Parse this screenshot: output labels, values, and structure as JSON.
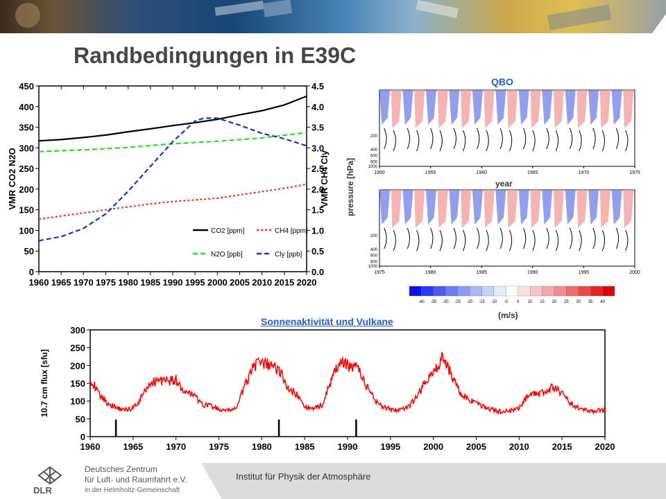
{
  "title": "Randbedingungen in E39C",
  "qbo_title": "QBO",
  "qbo_ylabel": "pressure [hPa]",
  "qbo_xlabel": "year",
  "qbo_colorbar_unit": "(m/s)",
  "solar_title": "Sonnenaktivität und Vulkane",
  "footer": {
    "institute": "Institut für Physik der Atmosphäre",
    "org_line1": "Deutsches Zentrum",
    "org_line2": "für Luft- und Raumfahrt e.V.",
    "org_line3": "in der Helmholtz-Gemeinschaft",
    "logo_text": "DLR"
  },
  "chart_data": [
    {
      "type": "line",
      "ylabel_left": "VMR CO2 N2O",
      "ylabel_right": "VMR CH4 Cly",
      "xlim": [
        1960,
        2020
      ],
      "ylim_left": [
        0,
        450
      ],
      "ylim_right": [
        0,
        4.5
      ],
      "x_ticks": [
        1960,
        1965,
        1970,
        1975,
        1980,
        1985,
        1990,
        1995,
        2000,
        2005,
        2010,
        2015,
        2020
      ],
      "y_ticks_left": [
        "0",
        "50",
        "100",
        "150",
        "200",
        "250",
        "300",
        "350",
        "400",
        "450"
      ],
      "y_ticks_right": [
        "0.0",
        "0.5",
        "1.0",
        "1.5",
        "2.0",
        "2.5",
        "3.0",
        "3.5",
        "4.0",
        "4.5"
      ],
      "grid": false,
      "legend_position": "bottom-right",
      "series": [
        {
          "name": "CO2 [ppm]",
          "axis": "left",
          "color": "#000000",
          "dash": "solid",
          "x": [
            1960,
            1965,
            1970,
            1975,
            1980,
            1985,
            1990,
            1995,
            2000,
            2005,
            2010,
            2015,
            2020
          ],
          "y": [
            317,
            320,
            325,
            331,
            339,
            346,
            354,
            361,
            369,
            380,
            390,
            404,
            425
          ]
        },
        {
          "name": "N2O [ppb]",
          "axis": "left",
          "color": "#22dd22",
          "dash": "dashed",
          "x": [
            1960,
            1970,
            1980,
            1990,
            2000,
            2010,
            2020
          ],
          "y": [
            291,
            295,
            301,
            310,
            316,
            324,
            337
          ]
        },
        {
          "name": "CH4 [ppm]",
          "axis": "right",
          "color": "#e83030",
          "dash": "dotted",
          "x": [
            1960,
            1965,
            1970,
            1975,
            1980,
            1985,
            1990,
            1995,
            2000,
            2005,
            2010,
            2015,
            2020
          ],
          "y": [
            1.27,
            1.35,
            1.42,
            1.5,
            1.57,
            1.64,
            1.7,
            1.74,
            1.78,
            1.86,
            1.94,
            2.02,
            2.12
          ]
        },
        {
          "name": "Cly [ppb]",
          "axis": "right",
          "color": "#1530c8",
          "dash": "dashed",
          "x": [
            1960,
            1965,
            1970,
            1975,
            1980,
            1985,
            1990,
            1995,
            1997,
            2000,
            2005,
            2010,
            2015,
            2020
          ],
          "y": [
            0.75,
            0.85,
            1.05,
            1.4,
            1.95,
            2.55,
            3.15,
            3.65,
            3.72,
            3.72,
            3.55,
            3.35,
            3.22,
            3.05
          ]
        }
      ]
    },
    {
      "type": "heatmap",
      "panels": [
        {
          "xlim": [
            1950,
            1975
          ],
          "x_ticks": [
            "1950",
            "1955",
            "1960",
            "1965",
            "1970",
            "1975"
          ]
        },
        {
          "xlim": [
            1975,
            2000
          ],
          "x_ticks": [
            "1975",
            "1980",
            "1985",
            "1990",
            "1995",
            "2000"
          ]
        }
      ],
      "y_ticks": [
        "200",
        "400",
        "600",
        "800",
        "1000"
      ],
      "colorbar": {
        "ticks": [
          "-40",
          "-35",
          "-30",
          "-25",
          "-20",
          "-15",
          "-10",
          "-5",
          "5",
          "10",
          "15",
          "20",
          "25",
          "30",
          "35",
          "40"
        ],
        "colors": [
          "#0a14e6",
          "#2a3af0",
          "#4a5cf2",
          "#6a7ef4",
          "#8a9cf6",
          "#aab8f8",
          "#c8d2fa",
          "#e6ecfc",
          "#ffffff",
          "#fde0e0",
          "#f9c4c4",
          "#f5a8a8",
          "#f18c8c",
          "#ec6c6c",
          "#e84a4a",
          "#e42424",
          "#e00000"
        ]
      }
    },
    {
      "type": "line",
      "ylabel": "10.7 cm flux [sfu]",
      "xlim": [
        1960,
        2020
      ],
      "ylim": [
        0,
        300
      ],
      "x_ticks": [
        1960,
        1965,
        1970,
        1975,
        1980,
        1985,
        1990,
        1995,
        2000,
        2005,
        2010,
        2015,
        2020
      ],
      "y_ticks": [
        0,
        50,
        100,
        150,
        200,
        250,
        300
      ],
      "volcano_years": [
        1963,
        1982,
        1991
      ],
      "series": [
        {
          "color": "#ff0000",
          "x": [
            1960,
            1961,
            1962,
            1963,
            1964,
            1965,
            1966,
            1967,
            1968,
            1969,
            1970,
            1971,
            1972,
            1973,
            1974,
            1975,
            1976,
            1977,
            1978,
            1979,
            1980,
            1981,
            1982,
            1983,
            1984,
            1985,
            1986,
            1987,
            1988,
            1989,
            1990,
            1991,
            1992,
            1993,
            1994,
            1995,
            1996,
            1997,
            1998,
            1999,
            2000,
            2001,
            2002,
            2003,
            2004,
            2005,
            2006,
            2007,
            2008,
            2009,
            2010,
            2011,
            2012,
            2013,
            2014,
            2015,
            2016,
            2017,
            2018,
            2019,
            2020
          ],
          "y": [
            165,
            120,
            95,
            82,
            75,
            80,
            110,
            150,
            160,
            155,
            160,
            120,
            120,
            90,
            88,
            75,
            72,
            80,
            140,
            200,
            205,
            200,
            190,
            140,
            120,
            85,
            75,
            90,
            150,
            210,
            200,
            200,
            150,
            110,
            85,
            77,
            73,
            80,
            110,
            150,
            180,
            220,
            180,
            130,
            105,
            92,
            82,
            75,
            70,
            72,
            80,
            115,
            120,
            125,
            140,
            120,
            95,
            80,
            72,
            72,
            75
          ]
        }
      ]
    }
  ]
}
